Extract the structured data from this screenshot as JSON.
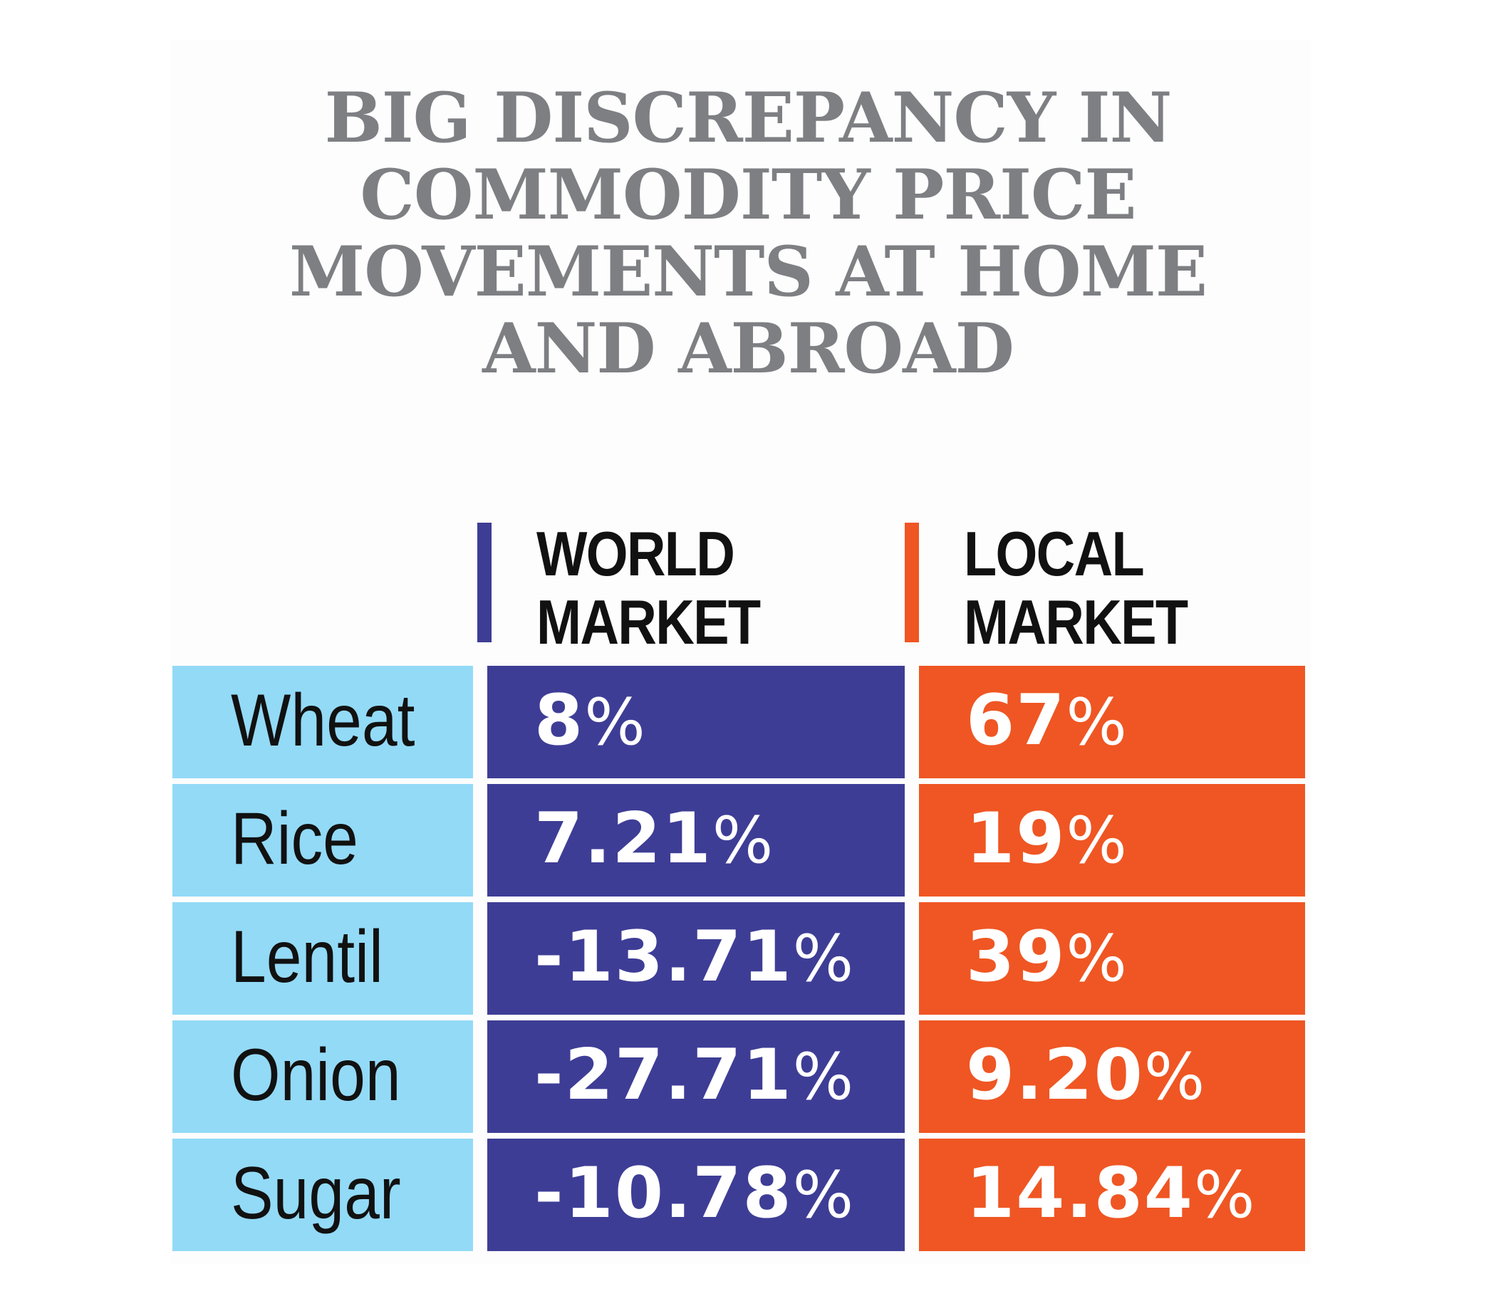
{
  "title": "BIG DISCREPANCY IN COMMODITY PRICE MOVEMENTS AT HOME AND ABROAD",
  "colors": {
    "title": "#7e7f83",
    "world": "#3e3d96",
    "local": "#ef5623",
    "category": "#93daf7"
  },
  "chart_data": {
    "type": "table",
    "title": "BIG DISCREPANCY IN COMMODITY PRICE MOVEMENTS AT HOME AND ABROAD",
    "columns": [
      "WORLD MARKET",
      "LOCAL MARKET"
    ],
    "categories": [
      "Wheat",
      "Rice",
      "Lentil",
      "Onion",
      "Sugar"
    ],
    "series": [
      {
        "name": "WORLD MARKET",
        "values": [
          8,
          7.21,
          -13.71,
          -27.71,
          -10.78
        ],
        "labels": [
          "8",
          "7.21",
          "-13.71",
          "-27.71",
          "-10.78"
        ]
      },
      {
        "name": "LOCAL MARKET",
        "values": [
          67,
          19,
          39,
          9.2,
          14.84
        ],
        "labels": [
          "67",
          "19",
          "39",
          "9.20",
          "14.84"
        ]
      }
    ],
    "unit": "%"
  }
}
